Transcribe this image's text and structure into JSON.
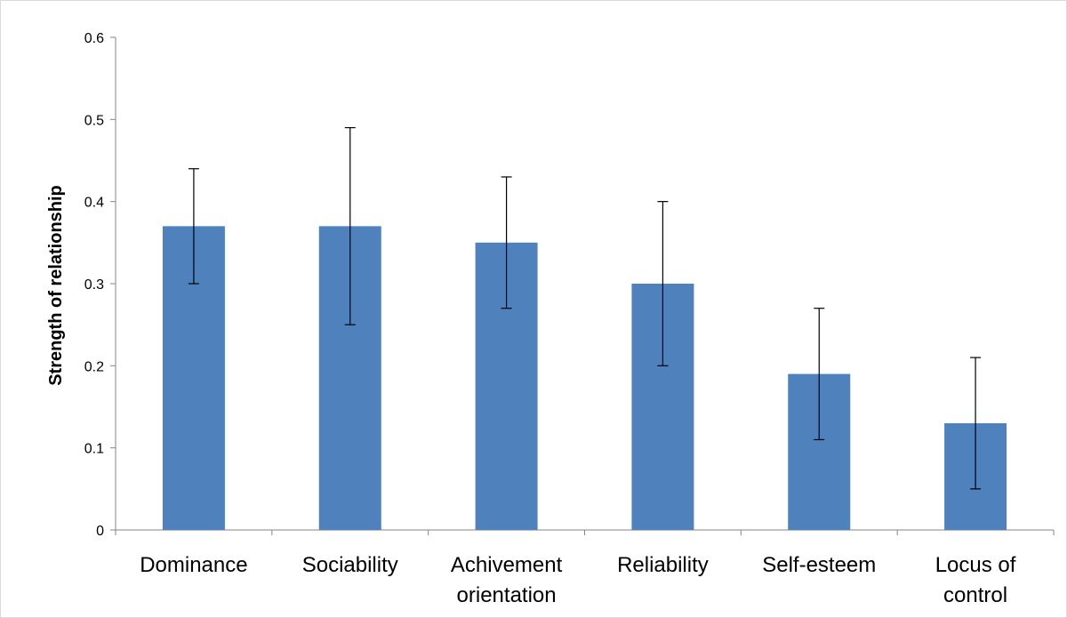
{
  "chart_data": {
    "type": "bar",
    "title": "",
    "xlabel": "",
    "ylabel": "Strength of relationship",
    "ylim": [
      0,
      0.6
    ],
    "yticks": [
      "0",
      "0.1",
      "0.2",
      "0.3",
      "0.4",
      "0.5",
      "0.6"
    ],
    "categories": [
      [
        "Dominance"
      ],
      [
        "Sociability"
      ],
      [
        "Achivement",
        "orientation"
      ],
      [
        "Reliability"
      ],
      [
        "Self-esteem"
      ],
      [
        "Locus of",
        "control"
      ]
    ],
    "values": [
      0.37,
      0.37,
      0.35,
      0.3,
      0.19,
      0.13
    ],
    "error_bars": [
      {
        "low": 0.3,
        "high": 0.44
      },
      {
        "low": 0.25,
        "high": 0.49
      },
      {
        "low": 0.27,
        "high": 0.43
      },
      {
        "low": 0.2,
        "high": 0.4
      },
      {
        "low": 0.11,
        "high": 0.27
      },
      {
        "low": 0.05,
        "high": 0.21
      }
    ],
    "grid": false,
    "legend": "none",
    "colors": {
      "bar": "#4f81bd",
      "axis": "#868686",
      "error": "#000000"
    }
  }
}
